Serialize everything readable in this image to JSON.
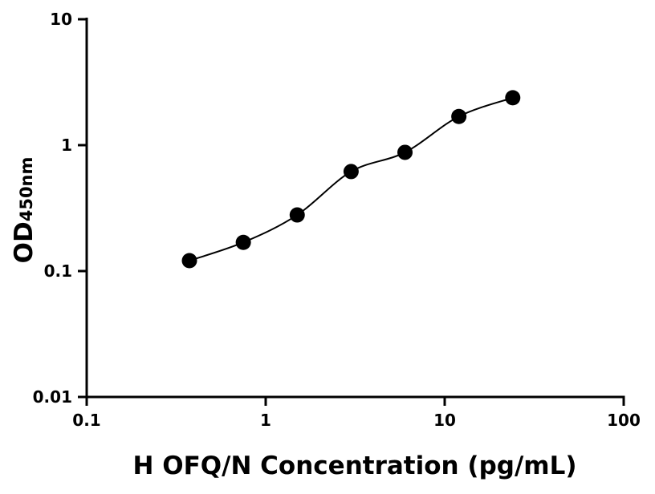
{
  "chart_data": {
    "type": "scatter",
    "xlabel": "H OFQ/N Concentration (pg/mL)",
    "ylabel": "OD",
    "ylabel_subscript": "450nm",
    "x_scale": "log",
    "y_scale": "log",
    "xlim": [
      0.1,
      100
    ],
    "ylim": [
      0.01,
      10
    ],
    "x_ticks": [
      "0.1",
      "1",
      "10",
      "100"
    ],
    "y_ticks": [
      "0.01",
      "0.1",
      "1",
      "10"
    ],
    "grid": false,
    "fit_curve": true,
    "colors": {
      "points": "#000000",
      "curve": "#000000"
    },
    "series": [
      {
        "x": [
          0.375,
          0.75,
          1.5,
          3,
          6,
          12,
          24
        ],
        "y": [
          0.121,
          0.169,
          0.279,
          0.617,
          0.877,
          1.69,
          2.38
        ]
      }
    ]
  }
}
